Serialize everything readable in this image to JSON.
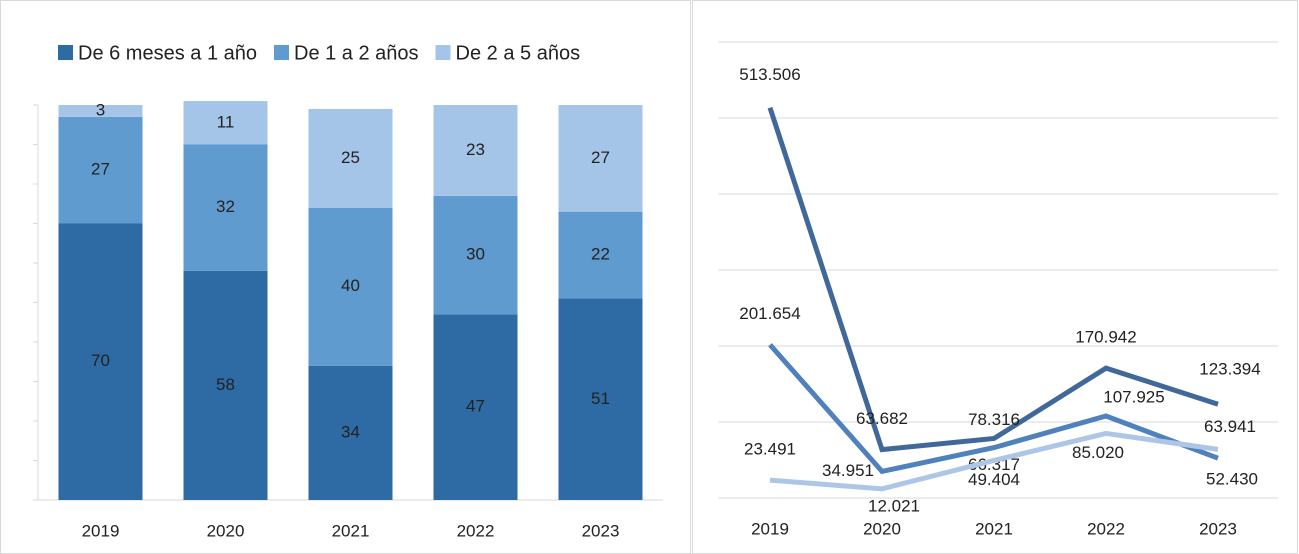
{
  "chart_data": [
    {
      "type": "stacked-bar",
      "categories": [
        "2019",
        "2020",
        "2021",
        "2022",
        "2023"
      ],
      "series": [
        {
          "name": "De 6 meses a 1 año",
          "color": "#2e6aa3",
          "values": [
            70,
            58,
            34,
            47,
            51
          ]
        },
        {
          "name": "De 1 a 2 años",
          "color": "#5f9bcf",
          "values": [
            27,
            32,
            40,
            30,
            22
          ]
        },
        {
          "name": "De 2 a 5 años",
          "color": "#a4c5e8",
          "values": [
            3,
            11,
            25,
            23,
            27
          ]
        }
      ],
      "ylim": [
        0,
        100
      ],
      "yticks": [
        0,
        10,
        20,
        30,
        40,
        50,
        60,
        70,
        80,
        90,
        100
      ],
      "legend": "top"
    },
    {
      "type": "line",
      "categories": [
        "2019",
        "2020",
        "2021",
        "2022",
        "2023"
      ],
      "series": [
        {
          "color": "#41689a",
          "values": [
            513506,
            63682,
            78316,
            170942,
            123394
          ],
          "value_labels": [
            "513.506",
            "63.682",
            "78.316",
            "170.942",
            "123.394"
          ]
        },
        {
          "color": "#4f81bd",
          "values": [
            201654,
            34951,
            66317,
            107925,
            52430
          ],
          "value_labels": [
            "201.654",
            "34.951",
            "66.317",
            "107.925",
            "52.430"
          ]
        },
        {
          "color": "#adc6e6",
          "values": [
            23491,
            12021,
            49404,
            85020,
            63941
          ],
          "value_labels": [
            "23.491",
            "12.021",
            "49.404",
            "85.020",
            "63.941"
          ]
        }
      ],
      "ylim": [
        0,
        600000
      ],
      "yticks": [
        0,
        100000,
        200000,
        300000,
        400000,
        500000,
        600000
      ],
      "grid": true
    }
  ]
}
